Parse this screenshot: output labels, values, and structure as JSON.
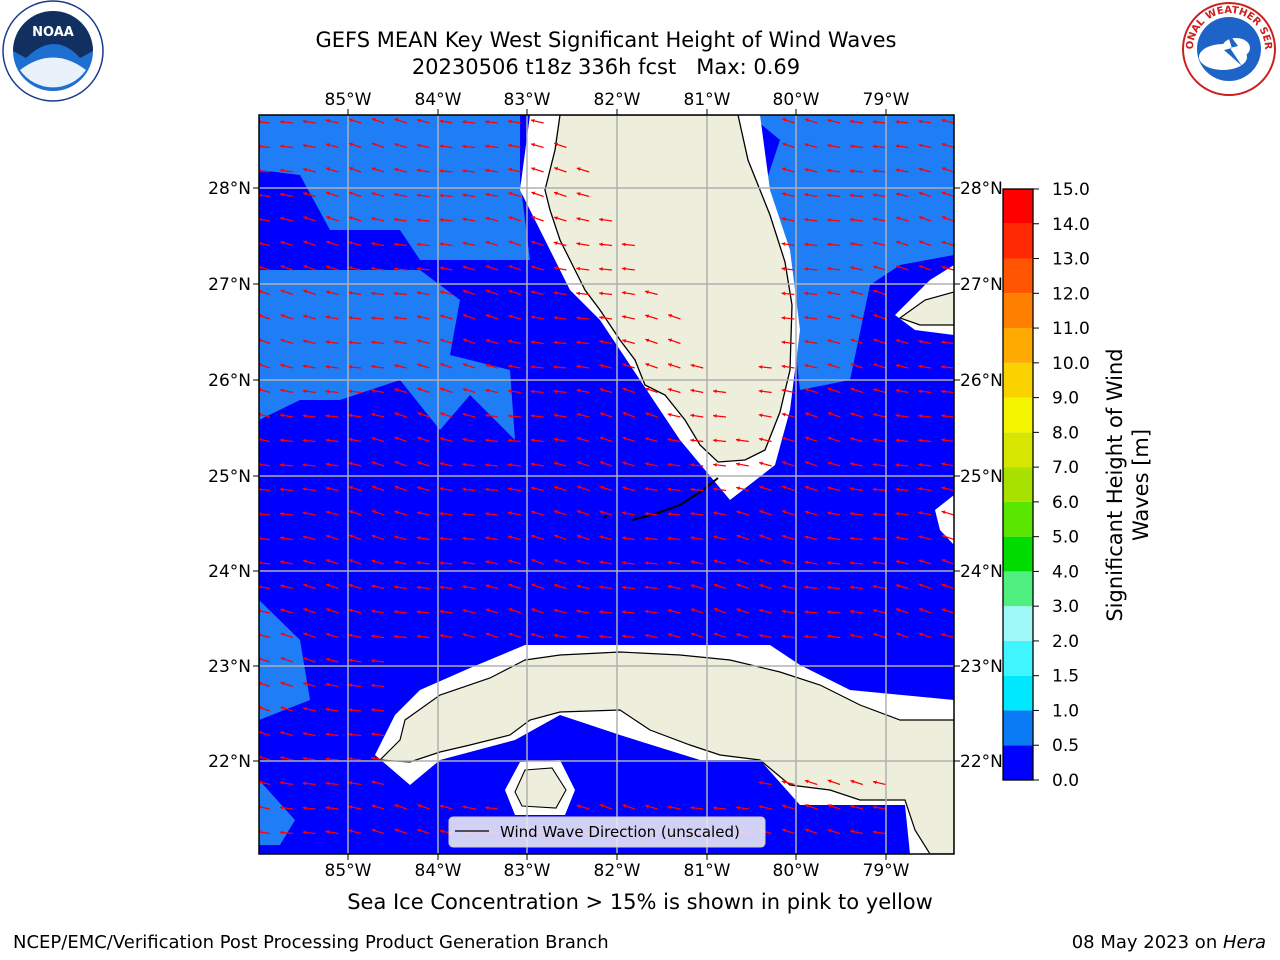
{
  "title": {
    "line1": "GEFS MEAN Key West Significant Height of Wind Waves",
    "line2": "20230506 t18z 336h fcst   Max: 0.69"
  },
  "map": {
    "lon_ticks": [
      "85°W",
      "84°W",
      "83°W",
      "82°W",
      "81°W",
      "80°W",
      "79°W"
    ],
    "lat_ticks": [
      "28°N",
      "27°N",
      "26°N",
      "25°N",
      "24°N",
      "23°N",
      "22°N"
    ],
    "legend_label": "Wind Wave Direction (unscaled)",
    "colors": {
      "ocean_low": "#0000ff",
      "ocean_mid": "#1f7ef5",
      "land": "#eeeedd",
      "arrow": "#ff0000",
      "grid": "#b0b0b0"
    },
    "arrow_direction": "west-southwest"
  },
  "colorbar": {
    "title_line1": "Significant Height of Wind",
    "title_line2": "Waves [m]",
    "tick_labels": [
      "0.0",
      "0.5",
      "1.0",
      "1.5",
      "2.0",
      "3.0",
      "4.0",
      "5.0",
      "6.0",
      "7.0",
      "8.0",
      "9.0",
      "10.0",
      "11.0",
      "12.0",
      "13.0",
      "14.0",
      "15.0"
    ],
    "colors": [
      "#0000ff",
      "#0a7af5",
      "#00e8ff",
      "#40f5ff",
      "#9ef8f8",
      "#50f080",
      "#00dc00",
      "#5ae600",
      "#a8e000",
      "#d6e600",
      "#f5f500",
      "#fad200",
      "#ffaa00",
      "#ff8000",
      "#ff5500",
      "#ff2800",
      "#ff0000"
    ]
  },
  "caption": "Sea Ice Concentration > 15% is shown in pink to yellow",
  "footer": {
    "left": "NCEP/EMC/Verification Post Processing Product Generation Branch",
    "right_date": "08 May 2023 on ",
    "right_host": "Hera"
  },
  "logos": {
    "left": "NOAA",
    "right_ring": "NATIONAL WEATHER SERVICE"
  }
}
